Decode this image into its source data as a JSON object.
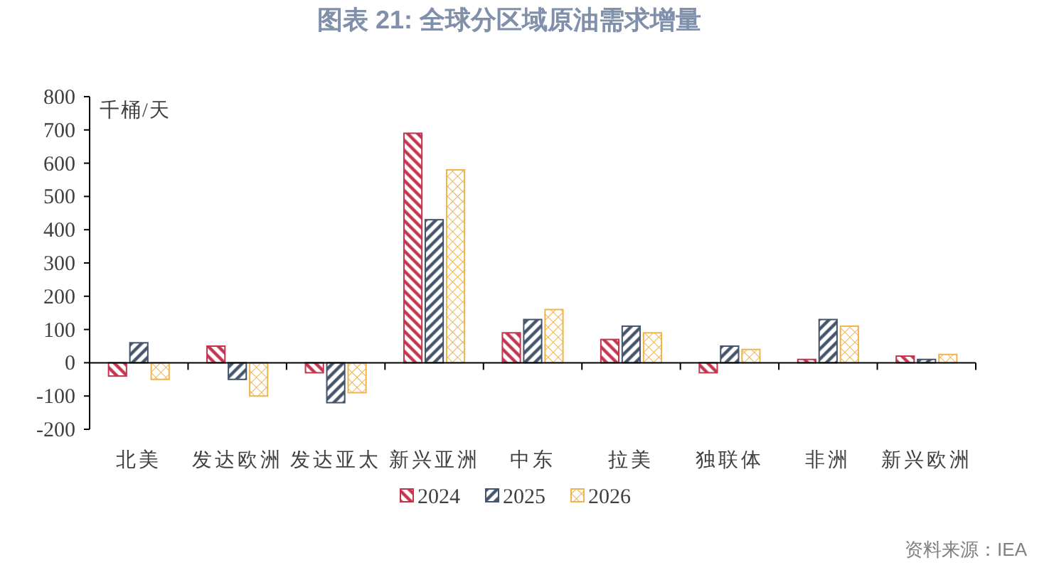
{
  "chart_data": {
    "type": "bar",
    "title": "图表 21: 全球分区域原油需求增量",
    "ylabel": "千桶/天",
    "categories": [
      "北美",
      "发达欧洲",
      "发达亚太",
      "新兴亚洲",
      "中东",
      "拉美",
      "独联体",
      "非洲",
      "新兴欧洲"
    ],
    "series": [
      {
        "name": "2024",
        "color": "#c3354f",
        "values": [
          -40,
          50,
          -30,
          690,
          90,
          70,
          -30,
          10,
          20
        ]
      },
      {
        "name": "2025",
        "color": "#44546a",
        "values": [
          60,
          -50,
          -120,
          430,
          130,
          110,
          50,
          130,
          10
        ]
      },
      {
        "name": "2026",
        "color": "#f0b44c",
        "values": [
          -50,
          -100,
          -90,
          580,
          160,
          90,
          40,
          110,
          25
        ]
      }
    ],
    "ylim": [
      -200,
      800
    ],
    "yticks": [
      -200,
      -100,
      0,
      100,
      200,
      300,
      400,
      500,
      600,
      700,
      800
    ],
    "legend": "bottom",
    "annotations": [
      "资料来源：IEA"
    ]
  }
}
